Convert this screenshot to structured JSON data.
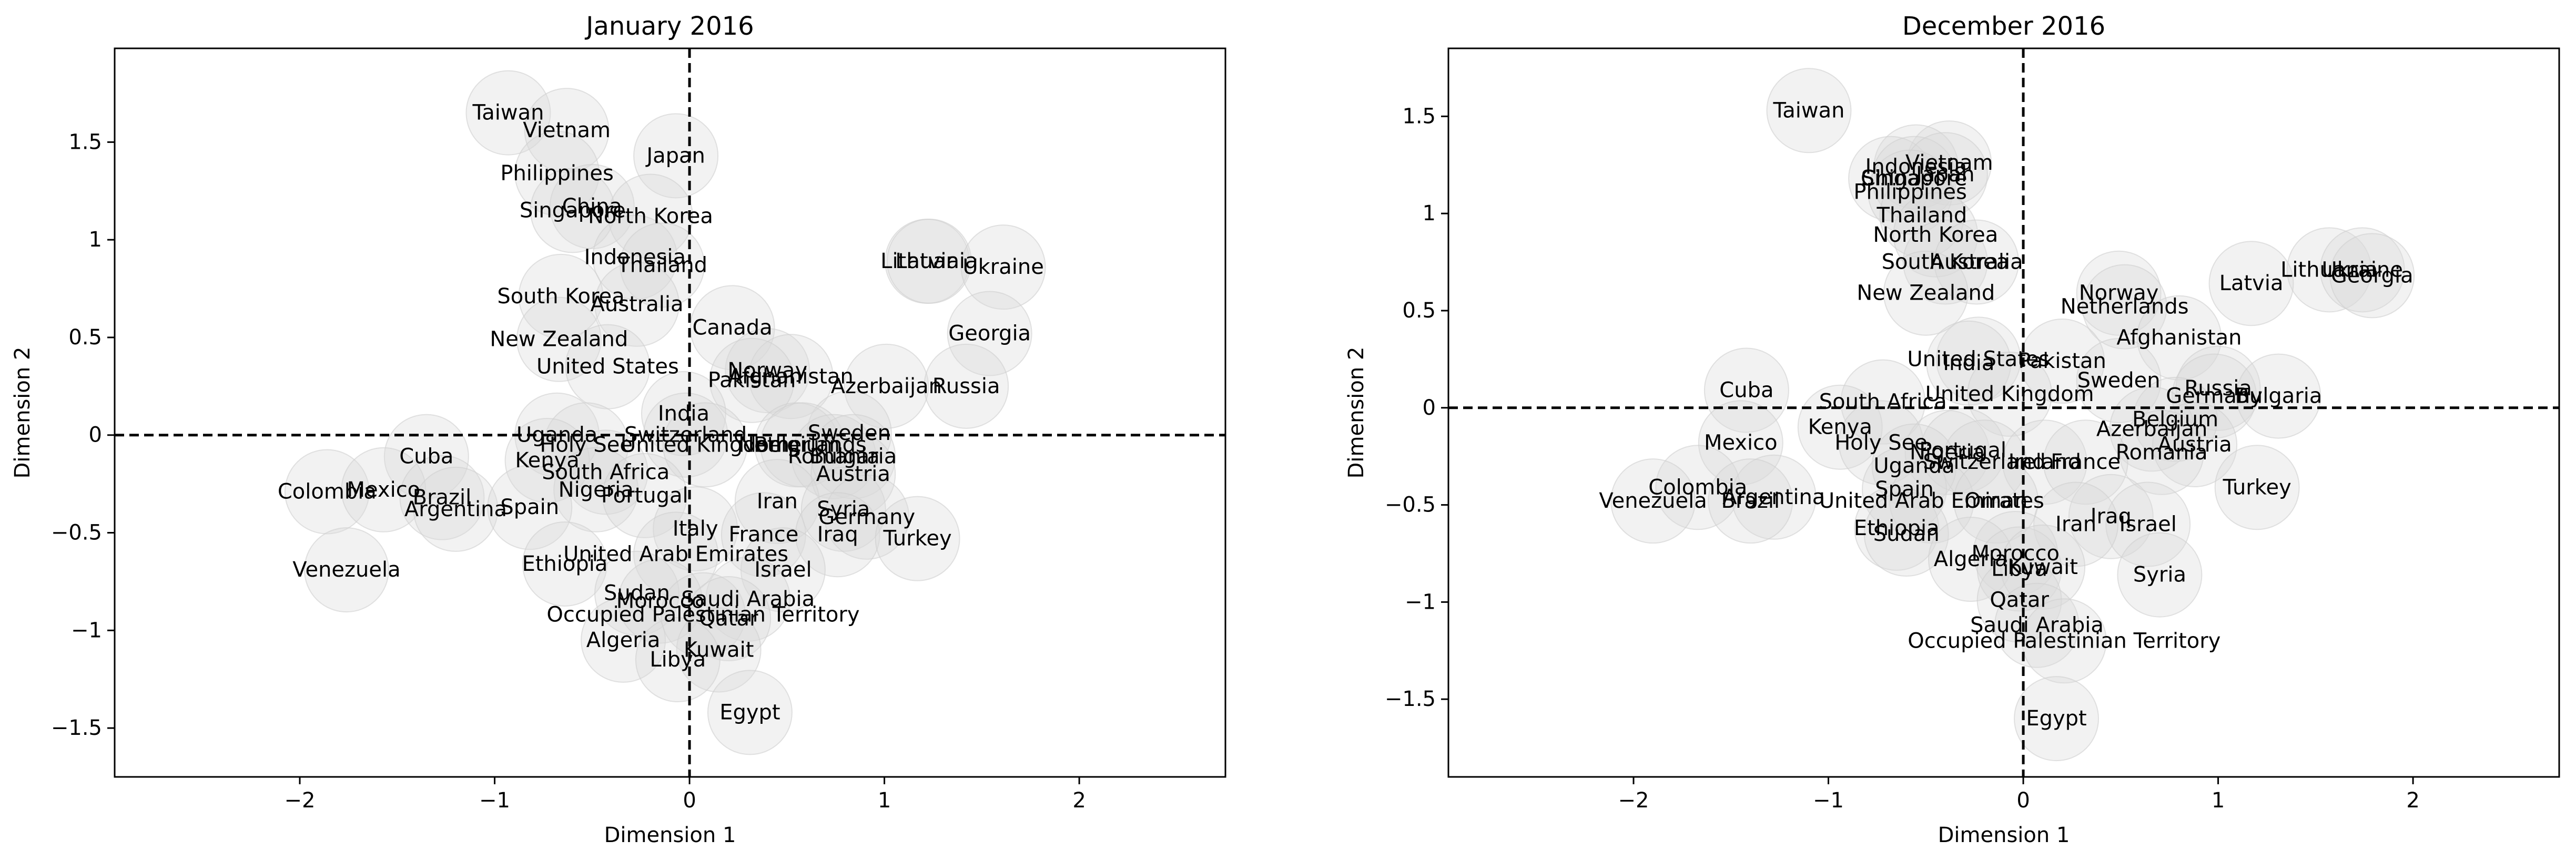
{
  "chart_data": [
    {
      "type": "scatter",
      "title": "January 2016",
      "xlabel": "Dimension 1",
      "ylabel": "Dimension 2",
      "xlim": [
        -2.95,
        2.75
      ],
      "ylim": [
        -1.75,
        1.98
      ],
      "xticks": [
        -2,
        -1,
        0,
        1,
        2
      ],
      "yticks": [
        -1.5,
        -1.0,
        -0.5,
        0.0,
        0.5,
        1.0,
        1.5
      ],
      "grid": false,
      "reference_lines": {
        "x": 0,
        "y": 0,
        "style": "dashed"
      },
      "points": [
        {
          "label": "Taiwan",
          "x": -0.93,
          "y": 1.65
        },
        {
          "label": "Vietnam",
          "x": -0.63,
          "y": 1.56
        },
        {
          "label": "Japan",
          "x": -0.07,
          "y": 1.43
        },
        {
          "label": "Philippines",
          "x": -0.68,
          "y": 1.34
        },
        {
          "label": "China",
          "x": -0.5,
          "y": 1.17
        },
        {
          "label": "Singapore",
          "x": -0.6,
          "y": 1.15
        },
        {
          "label": "North Korea",
          "x": -0.2,
          "y": 1.12
        },
        {
          "label": "Indonesia",
          "x": -0.28,
          "y": 0.91
        },
        {
          "label": "Thailand",
          "x": -0.14,
          "y": 0.87
        },
        {
          "label": "Latvia",
          "x": 1.22,
          "y": 0.89
        },
        {
          "label": "Lithuania",
          "x": 1.23,
          "y": 0.89
        },
        {
          "label": "Ukraine",
          "x": 1.61,
          "y": 0.86
        },
        {
          "label": "South Korea",
          "x": -0.66,
          "y": 0.71
        },
        {
          "label": "Australia",
          "x": -0.27,
          "y": 0.67
        },
        {
          "label": "Canada",
          "x": 0.22,
          "y": 0.55
        },
        {
          "label": "Georgia",
          "x": 1.54,
          "y": 0.52
        },
        {
          "label": "New Zealand",
          "x": -0.67,
          "y": 0.49
        },
        {
          "label": "United States",
          "x": -0.42,
          "y": 0.35
        },
        {
          "label": "Norway",
          "x": 0.4,
          "y": 0.33
        },
        {
          "label": "Afghanistan",
          "x": 0.52,
          "y": 0.3
        },
        {
          "label": "Pakistan",
          "x": 0.32,
          "y": 0.28
        },
        {
          "label": "Azerbaijan",
          "x": 1.01,
          "y": 0.25
        },
        {
          "label": "Russia",
          "x": 1.42,
          "y": 0.25
        },
        {
          "label": "India",
          "x": -0.03,
          "y": 0.11
        },
        {
          "label": "Uganda",
          "x": -0.68,
          "y": 0.0
        },
        {
          "label": "Switzerland",
          "x": -0.02,
          "y": 0.0
        },
        {
          "label": "Sweden",
          "x": 0.82,
          "y": 0.01
        },
        {
          "label": "Holy See",
          "x": -0.53,
          "y": -0.05
        },
        {
          "label": "United Kingdom",
          "x": 0.08,
          "y": -0.05
        },
        {
          "label": "Belgium",
          "x": 0.55,
          "y": -0.05
        },
        {
          "label": "Netherlands",
          "x": 0.58,
          "y": -0.05
        },
        {
          "label": "Cuba",
          "x": -1.35,
          "y": -0.11
        },
        {
          "label": "Kenya",
          "x": -0.73,
          "y": -0.13
        },
        {
          "label": "Romania",
          "x": 0.74,
          "y": -0.11
        },
        {
          "label": "Bulgaria",
          "x": 0.84,
          "y": -0.11
        },
        {
          "label": "South Africa",
          "x": -0.43,
          "y": -0.19
        },
        {
          "label": "Austria",
          "x": 0.84,
          "y": -0.2
        },
        {
          "label": "Colombia",
          "x": -1.86,
          "y": -0.29
        },
        {
          "label": "Mexico",
          "x": -1.57,
          "y": -0.28
        },
        {
          "label": "Brazil",
          "x": -1.27,
          "y": -0.32
        },
        {
          "label": "Nigeria",
          "x": -0.48,
          "y": -0.28
        },
        {
          "label": "Portugal",
          "x": -0.23,
          "y": -0.31
        },
        {
          "label": "Argentina",
          "x": -1.2,
          "y": -0.38
        },
        {
          "label": "Spain",
          "x": -0.82,
          "y": -0.37
        },
        {
          "label": "Iran",
          "x": 0.45,
          "y": -0.34
        },
        {
          "label": "Syria",
          "x": 0.79,
          "y": -0.38
        },
        {
          "label": "Germany",
          "x": 0.91,
          "y": -0.42
        },
        {
          "label": "Italy",
          "x": 0.03,
          "y": -0.48
        },
        {
          "label": "France",
          "x": 0.38,
          "y": -0.51
        },
        {
          "label": "Iraq",
          "x": 0.76,
          "y": -0.51
        },
        {
          "label": "Turkey",
          "x": 1.17,
          "y": -0.53
        },
        {
          "label": "United Arab Emirates",
          "x": -0.07,
          "y": -0.61
        },
        {
          "label": "Ethiopia",
          "x": -0.64,
          "y": -0.66
        },
        {
          "label": "Israel",
          "x": 0.48,
          "y": -0.69
        },
        {
          "label": "Venezuela",
          "x": -1.76,
          "y": -0.69
        },
        {
          "label": "Sudan",
          "x": -0.27,
          "y": -0.81
        },
        {
          "label": "Morocco",
          "x": -0.15,
          "y": -0.85
        },
        {
          "label": "Saudi Arabia",
          "x": 0.3,
          "y": -0.84
        },
        {
          "label": "Occupied Palestinian Territory",
          "x": 0.07,
          "y": -0.92
        },
        {
          "label": "Qatar",
          "x": 0.2,
          "y": -0.94
        },
        {
          "label": "Algeria",
          "x": -0.34,
          "y": -1.05
        },
        {
          "label": "Kuwait",
          "x": 0.15,
          "y": -1.1
        },
        {
          "label": "Libya",
          "x": -0.06,
          "y": -1.15
        },
        {
          "label": "Egypt",
          "x": 0.31,
          "y": -1.42
        }
      ]
    },
    {
      "type": "scatter",
      "title": "December 2016",
      "xlabel": "Dimension 1",
      "ylabel": "Dimension 2",
      "xlim": [
        -2.95,
        2.75
      ],
      "ylim": [
        -1.9,
        1.85
      ],
      "xticks": [
        -2,
        -1,
        0,
        1,
        2
      ],
      "yticks": [
        -1.5,
        -1.0,
        -0.5,
        0.0,
        0.5,
        1.0,
        1.5
      ],
      "grid": false,
      "reference_lines": {
        "x": 0,
        "y": 0,
        "style": "dashed"
      },
      "points": [
        {
          "label": "Taiwan",
          "x": -1.1,
          "y": 1.53
        },
        {
          "label": "Vietnam",
          "x": -0.38,
          "y": 1.26
        },
        {
          "label": "Indonesia",
          "x": -0.55,
          "y": 1.24
        },
        {
          "label": "China",
          "x": -0.68,
          "y": 1.18
        },
        {
          "label": "Singapore",
          "x": -0.56,
          "y": 1.18
        },
        {
          "label": "Japan",
          "x": -0.4,
          "y": 1.2
        },
        {
          "label": "Philippines",
          "x": -0.58,
          "y": 1.11
        },
        {
          "label": "Thailand",
          "x": -0.52,
          "y": 0.99
        },
        {
          "label": "North Korea",
          "x": -0.45,
          "y": 0.89
        },
        {
          "label": "South Korea",
          "x": -0.4,
          "y": 0.75
        },
        {
          "label": "Australia",
          "x": -0.24,
          "y": 0.75
        },
        {
          "label": "Lithuania",
          "x": 1.57,
          "y": 0.71
        },
        {
          "label": "Ukraine",
          "x": 1.74,
          "y": 0.71
        },
        {
          "label": "Georgia",
          "x": 1.79,
          "y": 0.68
        },
        {
          "label": "Latvia",
          "x": 1.17,
          "y": 0.64
        },
        {
          "label": "New Zealand",
          "x": -0.5,
          "y": 0.59
        },
        {
          "label": "Norway",
          "x": 0.49,
          "y": 0.59
        },
        {
          "label": "Netherlands",
          "x": 0.52,
          "y": 0.52
        },
        {
          "label": "Afghanistan",
          "x": 0.8,
          "y": 0.36
        },
        {
          "label": "United States",
          "x": -0.23,
          "y": 0.25
        },
        {
          "label": "Pakistan",
          "x": 0.2,
          "y": 0.24
        },
        {
          "label": "India",
          "x": -0.28,
          "y": 0.23
        },
        {
          "label": "Sweden",
          "x": 0.49,
          "y": 0.14
        },
        {
          "label": "Russia",
          "x": 1.0,
          "y": 0.1
        },
        {
          "label": "Germany",
          "x": 0.98,
          "y": 0.06
        },
        {
          "label": "Bulgaria",
          "x": 1.31,
          "y": 0.06
        },
        {
          "label": "United Kingdom",
          "x": -0.07,
          "y": 0.07
        },
        {
          "label": "Cuba",
          "x": -1.42,
          "y": 0.09
        },
        {
          "label": "South Africa",
          "x": -0.72,
          "y": 0.03
        },
        {
          "label": "Belgium",
          "x": 0.78,
          "y": -0.06
        },
        {
          "label": "Azerbaijan",
          "x": 0.66,
          "y": -0.11
        },
        {
          "label": "Kenya",
          "x": -0.94,
          "y": -0.1
        },
        {
          "label": "Holy See",
          "x": -0.73,
          "y": -0.18
        },
        {
          "label": "Mexico",
          "x": -1.45,
          "y": -0.18
        },
        {
          "label": "Austria",
          "x": 0.88,
          "y": -0.19
        },
        {
          "label": "Nigeria",
          "x": -0.39,
          "y": -0.23
        },
        {
          "label": "Portugal",
          "x": -0.31,
          "y": -0.22
        },
        {
          "label": "Romania",
          "x": 0.71,
          "y": -0.23
        },
        {
          "label": "Switzerland",
          "x": -0.2,
          "y": -0.28
        },
        {
          "label": "Ireland",
          "x": 0.11,
          "y": -0.28
        },
        {
          "label": "France",
          "x": 0.32,
          "y": -0.28
        },
        {
          "label": "Uganda",
          "x": -0.56,
          "y": -0.3
        },
        {
          "label": "Colombia",
          "x": -1.67,
          "y": -0.41
        },
        {
          "label": "Spain",
          "x": -0.61,
          "y": -0.42
        },
        {
          "label": "Turkey",
          "x": 1.2,
          "y": -0.41
        },
        {
          "label": "Argentina",
          "x": -1.28,
          "y": -0.46
        },
        {
          "label": "Venezuela",
          "x": -1.9,
          "y": -0.48
        },
        {
          "label": "Brazil",
          "x": -1.4,
          "y": -0.48
        },
        {
          "label": "United Arab Emirates",
          "x": -0.47,
          "y": -0.48
        },
        {
          "label": "Oman",
          "x": -0.14,
          "y": -0.48
        },
        {
          "label": "Iraq",
          "x": 0.45,
          "y": -0.56
        },
        {
          "label": "Israel",
          "x": 0.64,
          "y": -0.6
        },
        {
          "label": "Iran",
          "x": 0.27,
          "y": -0.6
        },
        {
          "label": "Ethiopia",
          "x": -0.65,
          "y": -0.62
        },
        {
          "label": "Sudan",
          "x": -0.6,
          "y": -0.65
        },
        {
          "label": "Morocco",
          "x": -0.04,
          "y": -0.75
        },
        {
          "label": "Algeria",
          "x": -0.27,
          "y": -0.78
        },
        {
          "label": "Libya",
          "x": -0.02,
          "y": -0.83
        },
        {
          "label": "Kuwait",
          "x": 0.1,
          "y": -0.82
        },
        {
          "label": "Syria",
          "x": 0.7,
          "y": -0.86
        },
        {
          "label": "Qatar",
          "x": -0.02,
          "y": -0.99
        },
        {
          "label": "Saudi Arabia",
          "x": 0.07,
          "y": -1.12
        },
        {
          "label": "Occupied Palestinian Territory",
          "x": 0.21,
          "y": -1.2
        },
        {
          "label": "Egypt",
          "x": 0.17,
          "y": -1.6
        }
      ]
    }
  ]
}
